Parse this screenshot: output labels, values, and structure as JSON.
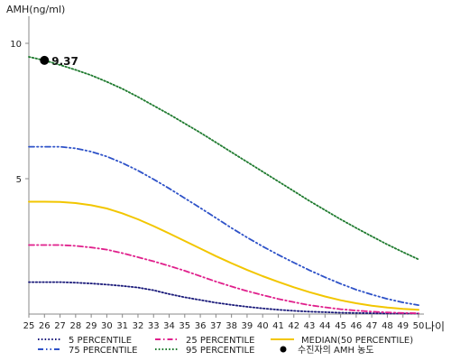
{
  "chart_data": {
    "type": "line",
    "title": "",
    "ylabel": "AMH(ng/ml)",
    "xlabel": "나이",
    "xlim": [
      25,
      50
    ],
    "ylim": [
      0,
      11
    ],
    "x": [
      25,
      26,
      27,
      28,
      29,
      30,
      31,
      32,
      33,
      34,
      35,
      36,
      37,
      38,
      39,
      40,
      41,
      42,
      43,
      44,
      45,
      46,
      47,
      48,
      49,
      50
    ],
    "xticks": [
      "25",
      "26",
      "27",
      "28",
      "29",
      "30",
      "31",
      "32",
      "33",
      "34",
      "35",
      "36",
      "37",
      "38",
      "39",
      "40",
      "41",
      "42",
      "43",
      "44",
      "45",
      "46",
      "47",
      "48",
      "49",
      "50"
    ],
    "yticks": [
      {
        "value": 5,
        "label": "5"
      },
      {
        "value": 10,
        "label": "10"
      }
    ],
    "series": [
      {
        "name": "5 PERCENTILE",
        "color": "#1a1a7a",
        "dash": "dotted",
        "values": [
          1.18,
          1.18,
          1.18,
          1.16,
          1.13,
          1.09,
          1.04,
          0.98,
          0.88,
          0.74,
          0.62,
          0.52,
          0.42,
          0.34,
          0.27,
          0.21,
          0.16,
          0.12,
          0.09,
          0.07,
          0.05,
          0.04,
          0.03,
          0.02,
          0.02,
          0.02
        ]
      },
      {
        "name": "25 PERCENTILE",
        "color": "#e0208c",
        "dash": "dashdot",
        "values": [
          2.55,
          2.55,
          2.55,
          2.52,
          2.46,
          2.38,
          2.25,
          2.1,
          1.95,
          1.78,
          1.6,
          1.4,
          1.2,
          1.02,
          0.85,
          0.7,
          0.56,
          0.44,
          0.33,
          0.25,
          0.18,
          0.13,
          0.09,
          0.06,
          0.04,
          0.03
        ]
      },
      {
        "name": "MEDIAN(50 PERCENTILE)",
        "color": "#f2c600",
        "dash": "solid",
        "values": [
          4.15,
          4.15,
          4.14,
          4.1,
          4.02,
          3.9,
          3.72,
          3.5,
          3.25,
          2.98,
          2.7,
          2.42,
          2.14,
          1.88,
          1.63,
          1.4,
          1.19,
          0.99,
          0.81,
          0.65,
          0.51,
          0.4,
          0.31,
          0.24,
          0.19,
          0.16
        ]
      },
      {
        "name": "75 PERCENTILE",
        "color": "#2e52c8",
        "dash": "dashdotdot",
        "values": [
          6.18,
          6.18,
          6.18,
          6.12,
          6.0,
          5.82,
          5.58,
          5.3,
          4.98,
          4.64,
          4.28,
          3.92,
          3.55,
          3.18,
          2.83,
          2.5,
          2.19,
          1.9,
          1.62,
          1.36,
          1.12,
          0.9,
          0.72,
          0.56,
          0.43,
          0.33
        ]
      },
      {
        "name": "95 PERCENTILE",
        "color": "#1e7a2e",
        "dash": "dotted",
        "values": [
          9.5,
          9.37,
          9.2,
          9.02,
          8.82,
          8.58,
          8.32,
          8.02,
          7.7,
          7.38,
          7.04,
          6.7,
          6.34,
          5.98,
          5.62,
          5.26,
          4.9,
          4.54,
          4.18,
          3.84,
          3.5,
          3.18,
          2.87,
          2.57,
          2.29,
          2.02
        ]
      }
    ],
    "marker": {
      "name": "수진자의 AMH 농도",
      "x": 26,
      "y": 9.37,
      "label": "9.37",
      "color": "#000000"
    },
    "legend": {
      "position": "bottom",
      "items": [
        {
          "series": 0,
          "label": "5 PERCENTILE"
        },
        {
          "series": 1,
          "label": "25 PERCENTILE"
        },
        {
          "series": 2,
          "label": "MEDIAN(50 PERCENTILE)"
        },
        {
          "series": 3,
          "label": "75 PERCENTILE"
        },
        {
          "series": 4,
          "label": "95 PERCENTILE"
        },
        {
          "marker": true,
          "label": "수진자의 AMH 농도"
        }
      ]
    }
  }
}
